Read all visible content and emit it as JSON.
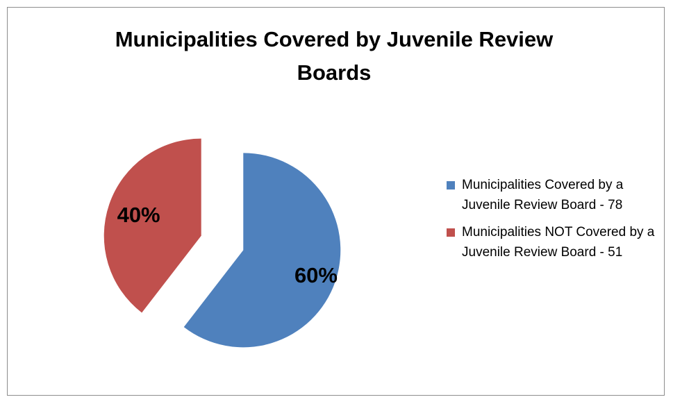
{
  "chart_data": {
    "type": "pie",
    "title": "Municipalities Covered by Juvenile Review Boards",
    "slices": [
      {
        "label": "Municipalities Covered by a Juvenile Review Board - 78",
        "value": 78,
        "percent_label": "60%",
        "color": "#4F81BD",
        "exploded": true
      },
      {
        "label": "Municipalities NOT Covered by a Juvenile Review Board - 51",
        "value": 51,
        "percent_label": "40%",
        "color": "#C0504D",
        "exploded": true
      }
    ],
    "legend_position": "right"
  }
}
